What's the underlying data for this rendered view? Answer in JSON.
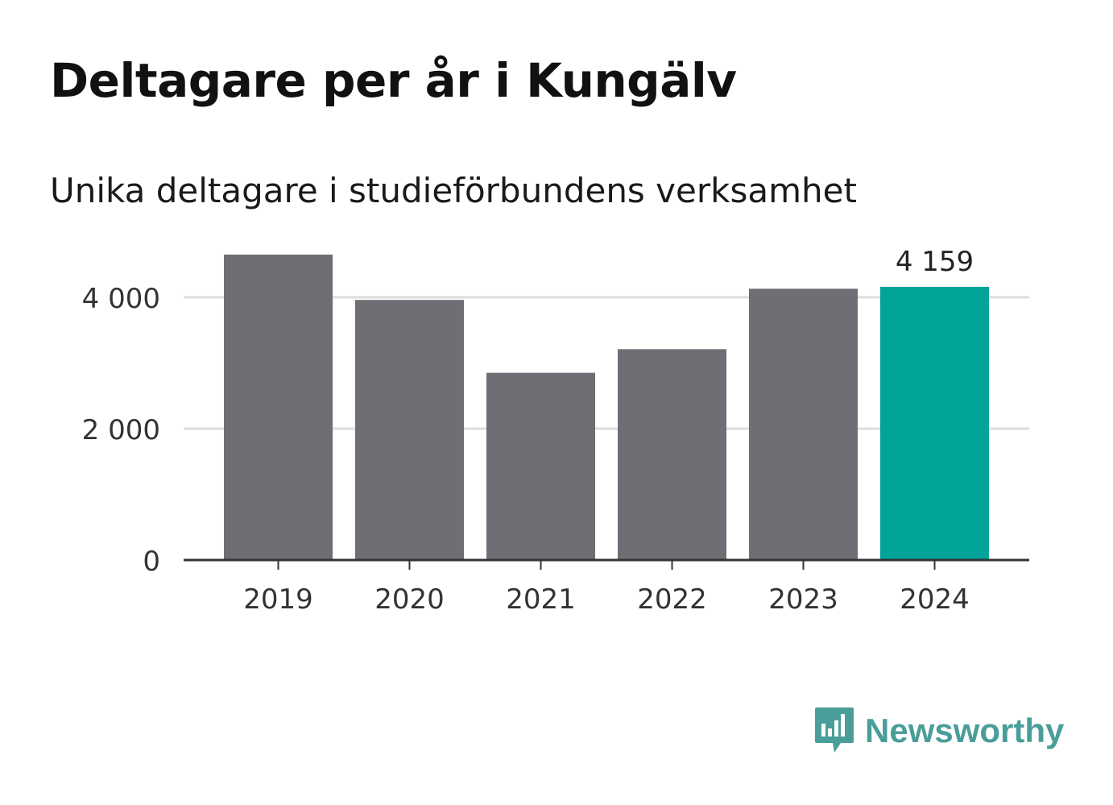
{
  "title": "Deltagare per år i Kungälv",
  "subtitle": "Unika deltagare i studieförbundens verksamhet",
  "brand": {
    "name": "Newsworthy",
    "icon": "newsworthy-logo-icon",
    "color": "#4a9e9a"
  },
  "chart_data": {
    "type": "bar",
    "categories": [
      "2019",
      "2020",
      "2021",
      "2022",
      "2023",
      "2024"
    ],
    "values": [
      4650,
      3960,
      2850,
      3210,
      4130,
      4159
    ],
    "highlight_index": 5,
    "highlight_label": "4 159",
    "ylim": [
      0,
      4600
    ],
    "yticks": [
      0,
      2000,
      4000
    ],
    "ytick_labels": [
      "0",
      "2 000",
      "4 000"
    ],
    "colors": {
      "bar": "#6f6e74",
      "highlight": "#00a499",
      "grid": "#dddddd",
      "axis": "#333333"
    },
    "grid": true
  }
}
